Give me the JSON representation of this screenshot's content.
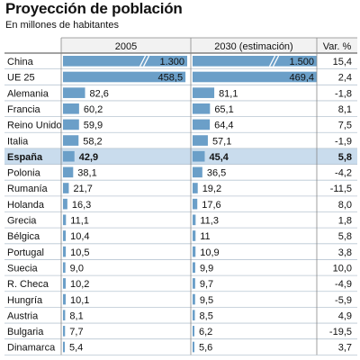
{
  "title": "Proyección de población",
  "subtitle": "En millones de habitantes",
  "headers": {
    "col1": "2005",
    "col2": "2030 (estimación)",
    "col3": "Var. %"
  },
  "colors": {
    "bar": "#6b9fc8",
    "highlight_bg": "#c9dced",
    "rule": "#b8c6d2",
    "header_bg": "#f2f2f2"
  },
  "chart_data": {
    "type": "bar",
    "unit": "millones de habitantes",
    "categories": [
      "China",
      "UE 25",
      "Alemania",
      "Francia",
      "Reino Unido",
      "Italia",
      "España",
      "Polonia",
      "Rumanía",
      "Holanda",
      "Grecia",
      "Bélgica",
      "Portugal",
      "Suecia",
      "R. Checa",
      "Hungría",
      "Austria",
      "Bulgaria",
      "Dinamarca"
    ],
    "series": [
      {
        "name": "2005",
        "values": [
          1300,
          458.5,
          82.6,
          60.2,
          59.9,
          58.2,
          42.9,
          38.1,
          21.7,
          16.3,
          11.1,
          10.4,
          10.5,
          9.0,
          10.2,
          10.1,
          8.1,
          7.7,
          5.4
        ],
        "labels": [
          "1.300",
          "458,5",
          "82,6",
          "60,2",
          "59,9",
          "58,2",
          "42,9",
          "38,1",
          "21,7",
          "16,3",
          "11,1",
          "10,4",
          "10,5",
          "9,0",
          "10,2",
          "10,1",
          "8,1",
          "7,7",
          "5,4"
        ]
      },
      {
        "name": "2030 (estimación)",
        "values": [
          1500,
          469.4,
          81.1,
          65.1,
          64.4,
          57.1,
          45.4,
          36.5,
          19.2,
          17.6,
          11.3,
          11,
          10.9,
          9.9,
          9.7,
          9.5,
          8.5,
          6.2,
          5.6
        ],
        "labels": [
          "1.500",
          "469,4",
          "81,1",
          "65,1",
          "64,4",
          "57,1",
          "45,4",
          "36,5",
          "19,2",
          "17,6",
          "11,3",
          "11",
          "10,9",
          "9,9",
          "9,7",
          "9,5",
          "8,5",
          "6,2",
          "5,6"
        ]
      }
    ],
    "variation": [
      "15,4",
      "2,4",
      "-1,8",
      "8,1",
      "7,5",
      "-1,9",
      "5,8",
      "-4,2",
      "-11,5",
      "8,0",
      "1,8",
      "5,8",
      "3,8",
      "10,0",
      "-4,9",
      "-5,9",
      "4,9",
      "-19,5",
      "3,7"
    ],
    "broken_bars": [
      "China"
    ],
    "highlight": "España"
  }
}
